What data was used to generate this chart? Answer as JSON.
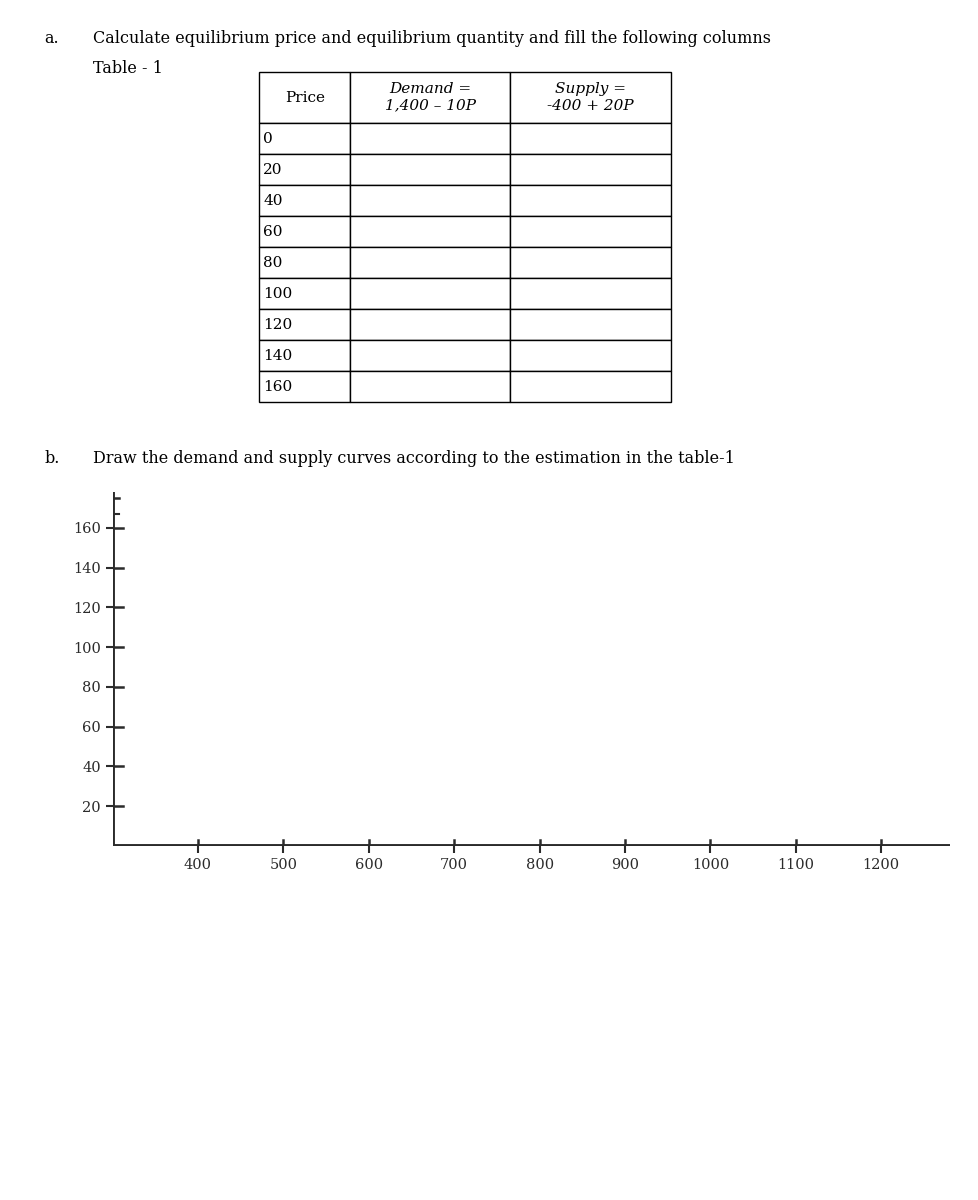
{
  "background_color": "#ffffff",
  "part_a_label": "a.",
  "part_a_text": "Calculate equilibrium price and equilibrium quantity and fill the following columns",
  "table_label": "Table - 1",
  "table_header_col1": "Price",
  "table_header_col2": "Demand =\n1,400 – 10P",
  "table_header_col3": "Supply =\n-400 + 20P",
  "price_rows": [
    0,
    20,
    40,
    60,
    80,
    100,
    120,
    140,
    160
  ],
  "part_b_label": "b.",
  "part_b_text": "Draw the demand and supply curves according to the estimation in the table-1",
  "chart_yticks": [
    20,
    40,
    60,
    80,
    100,
    120,
    140,
    160
  ],
  "chart_xticks": [
    400,
    500,
    600,
    700,
    800,
    900,
    1000,
    1100,
    1200
  ],
  "chart_xlim": [
    300,
    1280
  ],
  "chart_ylim": [
    0,
    178
  ],
  "axis_color": "#2b2b2b",
  "tick_label_fontsize": 10.5,
  "text_fontsize": 11.5,
  "table_fontsize": 11
}
